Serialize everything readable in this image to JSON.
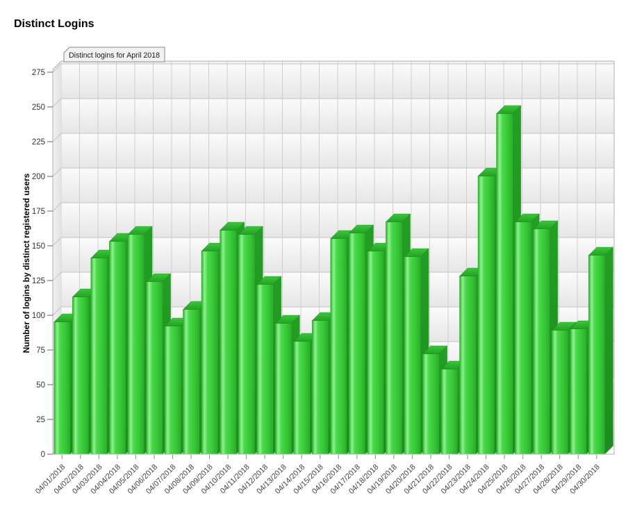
{
  "title": "Distinct Logins",
  "chart_data": {
    "type": "bar",
    "title": "Distinct Logins",
    "tab_label": "Distinct logins for April 2018",
    "ylabel": "Number of logins by distinct registered users",
    "xlabel": "",
    "categories": [
      "04/01/2018",
      "04/02/2018",
      "04/03/2018",
      "04/04/2018",
      "04/05/2018",
      "04/06/2018",
      "04/07/2018",
      "04/08/2018",
      "04/09/2018",
      "04/10/2018",
      "04/11/2018",
      "04/12/2018",
      "04/13/2018",
      "04/14/2018",
      "04/15/2018",
      "04/16/2018",
      "04/17/2018",
      "04/18/2018",
      "04/19/2018",
      "04/20/2018",
      "04/21/2018",
      "04/22/2018",
      "04/23/2018",
      "04/24/2018",
      "04/25/2018",
      "04/26/2018",
      "04/27/2018",
      "04/28/2018",
      "04/29/2018",
      "04/30/2018"
    ],
    "values": [
      95,
      113,
      141,
      153,
      158,
      124,
      92,
      104,
      146,
      161,
      158,
      122,
      94,
      81,
      96,
      155,
      159,
      146,
      167,
      142,
      72,
      61,
      128,
      200,
      245,
      167,
      162,
      89,
      90,
      143
    ],
    "yticks": [
      0,
      25,
      50,
      75,
      100,
      125,
      150,
      175,
      200,
      225,
      250,
      275
    ],
    "ylim": [
      0,
      277
    ],
    "grid": true,
    "legend": false,
    "style": "3d-bars",
    "colors": {
      "bar_front": "#49d849",
      "bar_front_highlight": "#92f092",
      "bar_front_dark": "#28a028",
      "bar_front_right": "#2aad2a",
      "bar_side_top": "#22a022",
      "bar_side_bottom": "#1c8c1c",
      "bar_top_light": "#38c838",
      "bar_top_dark": "#259f25",
      "grid_line": "#c3c3c3",
      "column_line": "#cfcfcf",
      "wall_band_light": "#fbfbfb",
      "wall_band_shade": "#e6e6e6",
      "wall_base": "#f2f2f2",
      "left_wall_light": "#f1f1f1",
      "left_wall_dark": "#e2e2e2",
      "floor": "#e8e8e8",
      "border": "#b0b0b0",
      "tab_bg": "#f2f2f2",
      "tab_border": "#8a8a8a",
      "tab_text": "#1a1a1a",
      "tick_mark": "#666666",
      "tick_text": "#333333",
      "x_label_text": "#444444",
      "axis_title_text": "#000000"
    }
  }
}
